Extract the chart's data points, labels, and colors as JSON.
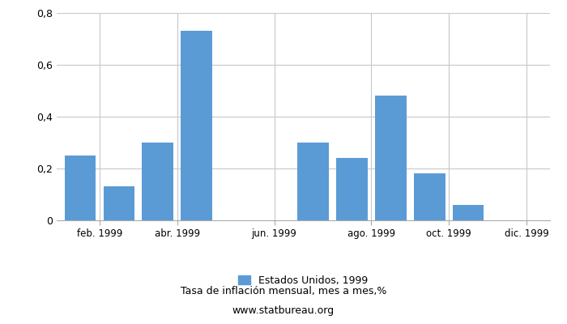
{
  "months_x": [
    0,
    1,
    2,
    3,
    6,
    7,
    8,
    9,
    10
  ],
  "values": [
    0.25,
    0.13,
    0.3,
    0.73,
    0.3,
    0.24,
    0.48,
    0.18,
    0.06
  ],
  "bar_color": "#5b9bd5",
  "xtick_positions": [
    0.5,
    2.5,
    5.0,
    7.5,
    9.5,
    11.5
  ],
  "xtick_labels": [
    "feb. 1999",
    "abr. 1999",
    "jun. 1999",
    "ago. 1999",
    "oct. 1999",
    "dic. 1999"
  ],
  "xlim": [
    -0.6,
    12.1
  ],
  "ylim": [
    0,
    0.8
  ],
  "yticks": [
    0,
    0.2,
    0.4,
    0.6,
    0.8
  ],
  "ytick_labels": [
    "0",
    "0,2",
    "0,4",
    "0,6",
    "0,8"
  ],
  "legend_label": "Estados Unidos, 1999",
  "title": "Tasa de inflación mensual, mes a mes,%",
  "subtitle": "www.statbureau.org",
  "background_color": "#ffffff",
  "grid_color": "#c8c8c8"
}
